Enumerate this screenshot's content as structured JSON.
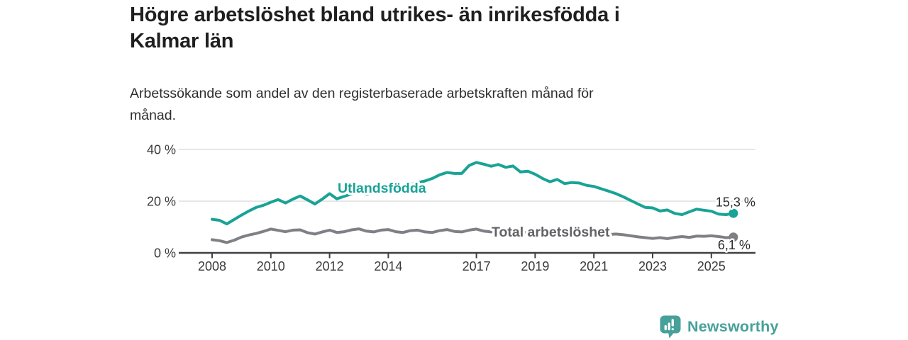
{
  "header": {
    "title_lines": [
      "Högre arbetslöshet bland utrikes- än inrikesfödda i",
      "Kalmar län"
    ],
    "subtitle_lines": [
      "Arbetssökande som andel av den registerbaserade arbetskraften månad för",
      "månad."
    ]
  },
  "colors": {
    "foreign_born_line": "#18a396",
    "total_line": "#7f8084",
    "total_label_text": "#626366",
    "axis": "#3f4042",
    "grid": "#d8d8d8",
    "tick_text": "#3a3a3a",
    "value_text": "#2b2b2b",
    "logo_teal": "#47a19a"
  },
  "chart_data": {
    "type": "line",
    "title": "Högre arbetslöshet bland utrikes- än inrikesfödda i Kalmar län",
    "subtitle": "Arbetssökande som andel av den registerbaserade arbetskraften månad för månad.",
    "x_unit": "decimal_year",
    "xlim": [
      2006.9,
      2026.5
    ],
    "ylim": [
      0,
      41
    ],
    "grid": "horizontal-only",
    "y_ticks": [
      0,
      20,
      40
    ],
    "y_tick_labels": [
      "0 %",
      "20 %",
      "40 %"
    ],
    "x_ticks": [
      2008,
      2010,
      2012,
      2014,
      2017,
      2019,
      2021,
      2023,
      2025
    ],
    "x_tick_labels": [
      "2008",
      "2010",
      "2012",
      "2014",
      "2017",
      "2019",
      "2021",
      "2023",
      "2025"
    ],
    "series": [
      {
        "name": "Total arbetslöshet",
        "color": "#7f8084",
        "label_color": "#626366",
        "end_value": 6.1,
        "end_label": "6,1 %",
        "points": [
          [
            2008.0,
            5.1
          ],
          [
            2008.25,
            4.7
          ],
          [
            2008.5,
            4.0
          ],
          [
            2008.75,
            4.9
          ],
          [
            2009.0,
            6.1
          ],
          [
            2009.25,
            6.9
          ],
          [
            2009.5,
            7.5
          ],
          [
            2009.75,
            8.3
          ],
          [
            2010.0,
            9.2
          ],
          [
            2010.25,
            8.7
          ],
          [
            2010.5,
            8.2
          ],
          [
            2010.75,
            8.8
          ],
          [
            2011.0,
            8.9
          ],
          [
            2011.25,
            7.8
          ],
          [
            2011.5,
            7.3
          ],
          [
            2011.75,
            8.1
          ],
          [
            2012.0,
            8.8
          ],
          [
            2012.25,
            7.9
          ],
          [
            2012.5,
            8.2
          ],
          [
            2012.75,
            8.9
          ],
          [
            2013.0,
            9.3
          ],
          [
            2013.25,
            8.4
          ],
          [
            2013.5,
            8.1
          ],
          [
            2013.75,
            8.8
          ],
          [
            2014.0,
            9.0
          ],
          [
            2014.25,
            8.2
          ],
          [
            2014.5,
            7.9
          ],
          [
            2014.75,
            8.6
          ],
          [
            2015.0,
            8.8
          ],
          [
            2015.25,
            8.1
          ],
          [
            2015.5,
            7.9
          ],
          [
            2015.75,
            8.6
          ],
          [
            2016.0,
            9.0
          ],
          [
            2016.25,
            8.3
          ],
          [
            2016.5,
            8.1
          ],
          [
            2016.75,
            8.8
          ],
          [
            2017.0,
            9.2
          ],
          [
            2017.25,
            8.4
          ],
          [
            2017.5,
            8.1
          ],
          [
            2017.75,
            8.6
          ],
          [
            2018.0,
            8.8
          ],
          [
            2018.25,
            8.0
          ],
          [
            2018.5,
            7.6
          ],
          [
            2018.75,
            8.1
          ],
          [
            2019.0,
            8.2
          ],
          [
            2019.25,
            7.6
          ],
          [
            2019.5,
            7.4
          ],
          [
            2019.75,
            7.9
          ],
          [
            2020.0,
            8.4
          ],
          [
            2020.25,
            9.0
          ],
          [
            2020.5,
            8.8
          ],
          [
            2020.75,
            8.4
          ],
          [
            2021.0,
            8.1
          ],
          [
            2021.25,
            7.5
          ],
          [
            2021.5,
            7.1
          ],
          [
            2021.75,
            7.3
          ],
          [
            2022.0,
            7.0
          ],
          [
            2022.25,
            6.6
          ],
          [
            2022.5,
            6.2
          ],
          [
            2022.75,
            5.9
          ],
          [
            2023.0,
            5.6
          ],
          [
            2023.25,
            5.9
          ],
          [
            2023.5,
            5.5
          ],
          [
            2023.75,
            6.0
          ],
          [
            2024.0,
            6.3
          ],
          [
            2024.25,
            6.0
          ],
          [
            2024.5,
            6.5
          ],
          [
            2024.75,
            6.4
          ],
          [
            2025.0,
            6.6
          ],
          [
            2025.25,
            6.3
          ],
          [
            2025.5,
            5.9
          ],
          [
            2025.75,
            6.1
          ]
        ]
      },
      {
        "name": "Utlandsfödda",
        "color": "#18a396",
        "label_color": "#18a396",
        "end_value": 15.3,
        "end_label": "15,3 %",
        "points": [
          [
            2008.0,
            13.0
          ],
          [
            2008.25,
            12.6
          ],
          [
            2008.5,
            11.2
          ],
          [
            2008.75,
            12.9
          ],
          [
            2009.0,
            14.6
          ],
          [
            2009.25,
            16.2
          ],
          [
            2009.5,
            17.6
          ],
          [
            2009.75,
            18.4
          ],
          [
            2010.0,
            19.6
          ],
          [
            2010.25,
            20.6
          ],
          [
            2010.5,
            19.3
          ],
          [
            2010.75,
            20.8
          ],
          [
            2011.0,
            22.0
          ],
          [
            2011.25,
            20.5
          ],
          [
            2011.5,
            18.9
          ],
          [
            2011.75,
            20.8
          ],
          [
            2012.0,
            22.9
          ],
          [
            2012.25,
            20.9
          ],
          [
            2012.5,
            21.9
          ],
          [
            2012.75,
            22.8
          ],
          [
            2013.0,
            23.3
          ],
          [
            2013.25,
            22.7
          ],
          [
            2013.5,
            23.2
          ],
          [
            2013.75,
            24.0
          ],
          [
            2014.0,
            24.8
          ],
          [
            2014.25,
            24.5
          ],
          [
            2014.5,
            25.4
          ],
          [
            2014.75,
            26.4
          ],
          [
            2015.0,
            27.2
          ],
          [
            2015.25,
            27.8
          ],
          [
            2015.5,
            28.8
          ],
          [
            2015.75,
            30.2
          ],
          [
            2016.0,
            31.1
          ],
          [
            2016.25,
            30.7
          ],
          [
            2016.5,
            30.7
          ],
          [
            2016.75,
            33.8
          ],
          [
            2017.0,
            35.0
          ],
          [
            2017.25,
            34.3
          ],
          [
            2017.5,
            33.5
          ],
          [
            2017.75,
            34.2
          ],
          [
            2018.0,
            33.1
          ],
          [
            2018.25,
            33.6
          ],
          [
            2018.5,
            31.3
          ],
          [
            2018.75,
            31.6
          ],
          [
            2019.0,
            30.4
          ],
          [
            2019.25,
            28.8
          ],
          [
            2019.5,
            27.5
          ],
          [
            2019.75,
            28.4
          ],
          [
            2020.0,
            26.8
          ],
          [
            2020.25,
            27.2
          ],
          [
            2020.5,
            27.0
          ],
          [
            2020.75,
            26.1
          ],
          [
            2021.0,
            25.7
          ],
          [
            2021.25,
            24.8
          ],
          [
            2021.5,
            23.9
          ],
          [
            2021.75,
            22.9
          ],
          [
            2022.0,
            21.7
          ],
          [
            2022.25,
            20.3
          ],
          [
            2022.5,
            18.9
          ],
          [
            2022.75,
            17.6
          ],
          [
            2023.0,
            17.4
          ],
          [
            2023.25,
            16.2
          ],
          [
            2023.5,
            16.6
          ],
          [
            2023.75,
            15.3
          ],
          [
            2024.0,
            14.8
          ],
          [
            2024.25,
            15.9
          ],
          [
            2024.5,
            16.9
          ],
          [
            2024.75,
            16.5
          ],
          [
            2025.0,
            16.1
          ],
          [
            2025.25,
            15.0
          ],
          [
            2025.5,
            14.8
          ],
          [
            2025.75,
            15.3
          ]
        ]
      }
    ]
  },
  "logo": {
    "text": "Newsworthy"
  }
}
